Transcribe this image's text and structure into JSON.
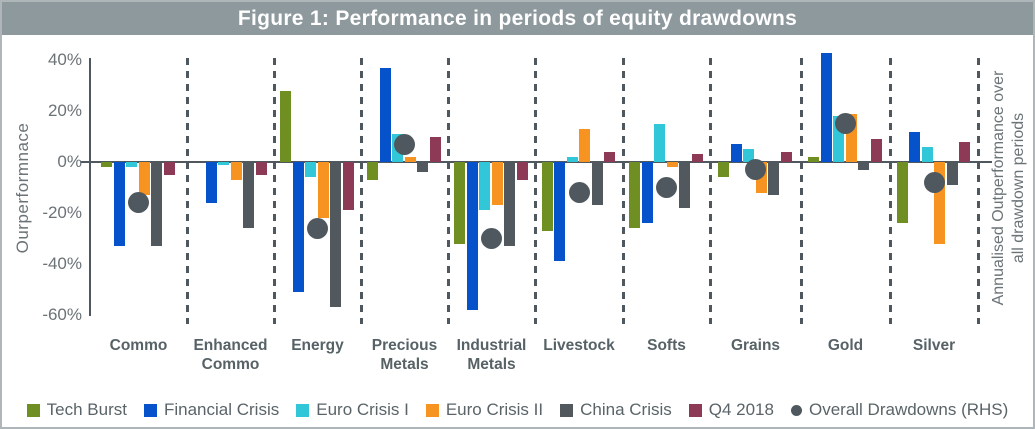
{
  "title": "Figure 1: Performance in periods of equity drawdowns",
  "left_axis": {
    "title": "Ourperformnace",
    "tick_labels": [
      "40%",
      "20%",
      "0%",
      "-20%",
      "-40%",
      "-60%"
    ],
    "tick_values": [
      40,
      20,
      0,
      -20,
      -40,
      -60
    ]
  },
  "right_axis": {
    "title_lines": [
      "Annualised Outperformance over",
      "all drawdown periods"
    ]
  },
  "chart_data": {
    "type": "bar",
    "title": "Figure 1: Performance in periods of equity drawdowns",
    "ylabel": "Ourperformnace",
    "ylabel_right": "Annualised Outperformance over all drawdown periods",
    "ylim": [
      -60,
      40
    ],
    "grid": false,
    "legend_position": "bottom",
    "categories": [
      "Commo",
      "Enhanced Commo",
      "Energy",
      "Precious Metals",
      "Industrial Metals",
      "Livestock",
      "Softs",
      "Grains",
      "Gold",
      "Silver"
    ],
    "categories_display": [
      "Commo",
      "Enhanced\nCommo",
      "Energy",
      "Precious\nMetals",
      "Industrial\nMetals",
      "Livestock",
      "Softs",
      "Grains",
      "Gold",
      "Silver"
    ],
    "series": [
      {
        "name": "Tech Burst",
        "color": "#6f8f22",
        "values": [
          -2,
          0,
          28,
          -7,
          -32,
          -27,
          -26,
          -6,
          2,
          -24
        ]
      },
      {
        "name": "Financial Crisis",
        "color": "#0552cb",
        "values": [
          -33,
          -16,
          -51,
          37,
          -58,
          -39,
          -24,
          7,
          43,
          12
        ]
      },
      {
        "name": "Euro Crisis I",
        "color": "#31c7d8",
        "values": [
          -2,
          -1,
          -6,
          11,
          -19,
          2,
          15,
          5,
          18,
          6
        ]
      },
      {
        "name": "Euro Crisis II",
        "color": "#f79321",
        "values": [
          -13,
          -7,
          -22,
          2,
          -17,
          13,
          -2,
          -12,
          19,
          -32
        ]
      },
      {
        "name": "China Crisis",
        "color": "#51595e",
        "values": [
          -33,
          -26,
          -57,
          -4,
          -33,
          -17,
          -18,
          -13,
          -3,
          -9
        ]
      },
      {
        "name": "Q4 2018",
        "color": "#8d3a57",
        "values": [
          -5,
          -5,
          -19,
          10,
          -7,
          4,
          3,
          4,
          9,
          8
        ]
      }
    ],
    "point_series": {
      "name": "Overall Drawdowns (RHS)",
      "color": "#4e585e",
      "marker": "circle",
      "values": [
        -16,
        null,
        -26,
        7,
        -30,
        -12,
        -10,
        -3,
        15,
        -8
      ]
    }
  }
}
